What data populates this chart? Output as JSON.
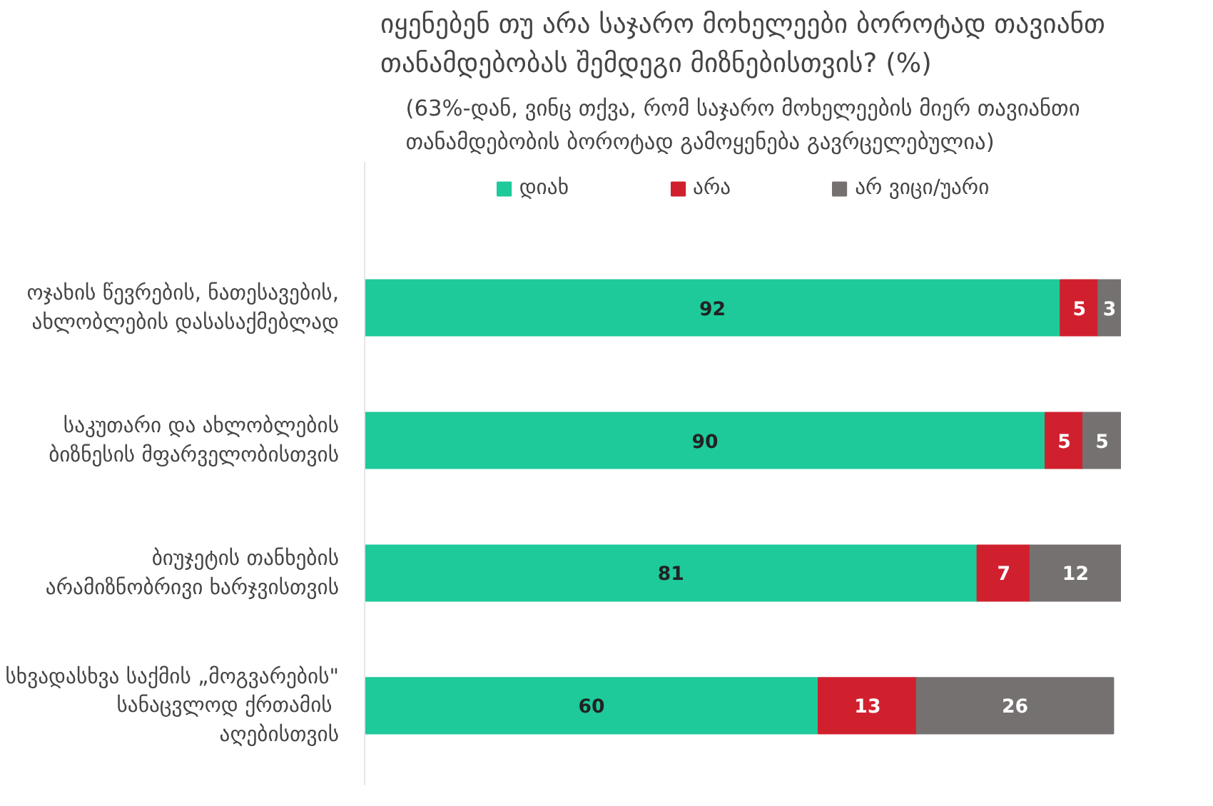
{
  "chart_data": {
    "type": "bar",
    "orientation": "horizontal",
    "stacked": true,
    "data_labels": true,
    "legend": "top",
    "grid": false,
    "title": "იყენებენ თუ არა საჯარო მოხელეები ბოროტად თავიანთ\nთანამდებობას შემდეგი მიზნებისთვის? (%)",
    "subtitle": "(63%-დან, ვინც თქვა, რომ საჯარო მოხელეების მიერ თავიანთი\nთანამდებობის ბოროტად გამოყენება გავრცელებულია)",
    "categories": [
      "ოჯახის წევრების, ნათესავების,\nახლობლების დასასაქმებლად",
      "საკუთარი და ახლობლების\nბიზნესის მფარველობისთვის",
      "ბიუჯეტის თანხების\nარამიზნობრივი ხარჯვისთვის",
      "სხვადასხვა საქმის „მოგვარების\"\nსანაცვლოდ  ქრთამის\nაღებისთვის"
    ],
    "series": [
      {
        "name": "დიახ",
        "color": "#1ec99a",
        "values": [
          92,
          90,
          81,
          60
        ]
      },
      {
        "name": "არა",
        "color": "#d0202e",
        "values": [
          5,
          5,
          7,
          13
        ]
      },
      {
        "name": "არ ვიცი/უარი",
        "color": "#767171",
        "values": [
          3,
          5,
          12,
          26
        ]
      }
    ]
  }
}
